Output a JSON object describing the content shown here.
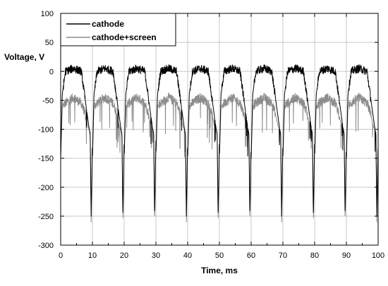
{
  "chart_data": {
    "type": "line",
    "title": "",
    "xlabel": "Time, ms",
    "ylabel": "Voltage, V",
    "xlim": [
      0,
      100
    ],
    "ylim": [
      -300,
      100
    ],
    "xticks": [
      0,
      10,
      20,
      30,
      40,
      50,
      60,
      70,
      80,
      90,
      100
    ],
    "yticks": [
      100,
      50,
      0,
      -50,
      -100,
      -150,
      -200,
      -250,
      -300
    ],
    "grid": true,
    "legend_position": "top-left",
    "period_ms": 10,
    "series": [
      {
        "name": "cathode",
        "color": "#000000",
        "description_points": {
          "x": [
            0,
            0.5,
            1.5,
            4,
            6.5,
            7.5,
            8.5,
            9.0,
            9.3,
            9.6,
            10
          ],
          "y": [
            -150,
            -40,
            0,
            5,
            0,
            -40,
            -80,
            -100,
            -110,
            -250,
            -120
          ]
        }
      },
      {
        "name": "cathode+screen",
        "color": "#8c8c8c",
        "description_points": {
          "x": [
            0,
            0.5,
            1.5,
            4,
            6.5,
            7.5,
            8.5,
            9.0,
            9.3,
            9.6,
            10
          ],
          "y": [
            -150,
            -60,
            -55,
            -45,
            -55,
            -70,
            -95,
            -100,
            -105,
            -260,
            -120
          ]
        }
      }
    ]
  }
}
